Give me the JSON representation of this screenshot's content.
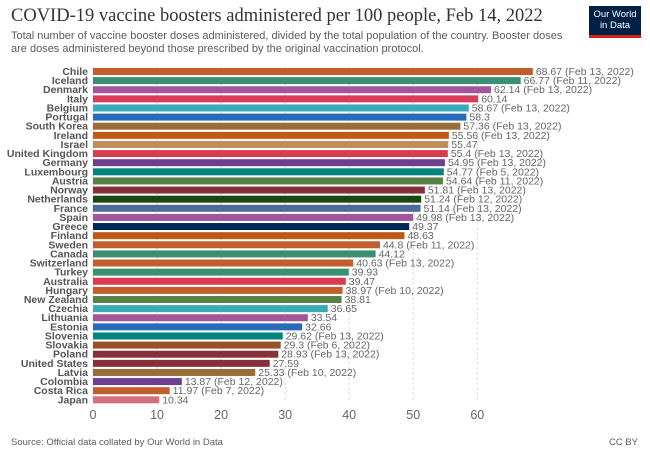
{
  "title": "COVID-19 vaccine boosters administered per 100 people, Feb 14, 2022",
  "subtitle_line1": "Total number of vaccine booster doses administered, divided by the total population of the country. Booster doses",
  "subtitle_line2": "are doses administered beyond those prescribed by the original vaccination protocol.",
  "logo_line1": "Our World",
  "logo_line2": "in Data",
  "source": "Source: Official data collated by Our World in Data",
  "license": "CC BY",
  "chart_data": {
    "type": "bar",
    "orientation": "horizontal",
    "xlim": [
      0,
      70
    ],
    "xticks": [
      "0",
      "10",
      "20",
      "30",
      "40",
      "50",
      "60"
    ],
    "grid": true,
    "categories": [
      "Chile",
      "Iceland",
      "Denmark",
      "Italy",
      "Belgium",
      "Portugal",
      "South Korea",
      "Ireland",
      "Israel",
      "United Kingdom",
      "Germany",
      "Luxembourg",
      "Austria",
      "Norway",
      "Netherlands",
      "France",
      "Spain",
      "Greece",
      "Finland",
      "Sweden",
      "Canada",
      "Switzerland",
      "Turkey",
      "Australia",
      "Hungary",
      "New Zealand",
      "Czechia",
      "Lithuania",
      "Estonia",
      "Slovenia",
      "Slovakia",
      "Poland",
      "United States",
      "Latvia",
      "Colombia",
      "Costa Rica",
      "Japan"
    ],
    "values": [
      68.67,
      66.77,
      62.14,
      60.14,
      58.67,
      58.3,
      57.36,
      55.56,
      55.47,
      55.4,
      54.95,
      54.77,
      54.64,
      51.81,
      51.24,
      51.14,
      49.98,
      49.37,
      48.63,
      44.8,
      44.12,
      40.63,
      39.93,
      39.47,
      38.97,
      38.81,
      36.65,
      33.54,
      32.66,
      29.62,
      29.3,
      28.93,
      27.59,
      25.33,
      13.87,
      11.97,
      10.34
    ],
    "labels": [
      "68.67 (Feb 13, 2022)",
      "66.77 (Feb 11, 2022)",
      "62.14 (Feb 13, 2022)",
      "60.14",
      "58.67 (Feb 13, 2022)",
      "58.3",
      "57.36 (Feb 13, 2022)",
      "55.56 (Feb 13, 2022)",
      "55.47",
      "55.4 (Feb 13, 2022)",
      "54.95 (Feb 13, 2022)",
      "54.77 (Feb 5, 2022)",
      "54.64 (Feb 11, 2022)",
      "51.81 (Feb 13, 2022)",
      "51.24 (Feb 12, 2022)",
      "51.14 (Feb 13, 2022)",
      "49.98 (Feb 13, 2022)",
      "49.37",
      "48.63",
      "44.8 (Feb 11, 2022)",
      "44.12",
      "40.63 (Feb 13, 2022)",
      "39.93",
      "39.47",
      "38.97 (Feb 10, 2022)",
      "38.81",
      "36.65",
      "33.54",
      "32.66",
      "29.62 (Feb 13, 2022)",
      "29.3 (Feb 6, 2022)",
      "28.93 (Feb 13, 2022)",
      "27.59",
      "25.33 (Feb 10, 2022)",
      "13.87 (Feb 12, 2022)",
      "11.97 (Feb 7, 2022)",
      "10.34"
    ],
    "colors": [
      "#c15e2c",
      "#3a8f74",
      "#a2559c",
      "#d93b5b",
      "#38aaba",
      "#286bbb",
      "#996d39",
      "#c05917",
      "#bc8e5a",
      "#d73c50",
      "#6d3e91",
      "#00847e",
      "#578145",
      "#883039",
      "#18470f",
      "#4c6a9c",
      "#a2559c",
      "#00295b",
      "#be5915",
      "#c15e2c",
      "#3a8f74",
      "#c15e2c",
      "#3a8f74",
      "#d73c50",
      "#c15e2c",
      "#578145",
      "#38aaba",
      "#a2559c",
      "#286bbb",
      "#00847e",
      "#9a5129",
      "#883039",
      "#883039",
      "#996d39",
      "#6d3e91",
      "#c15e2c",
      "#d26e7e"
    ]
  }
}
